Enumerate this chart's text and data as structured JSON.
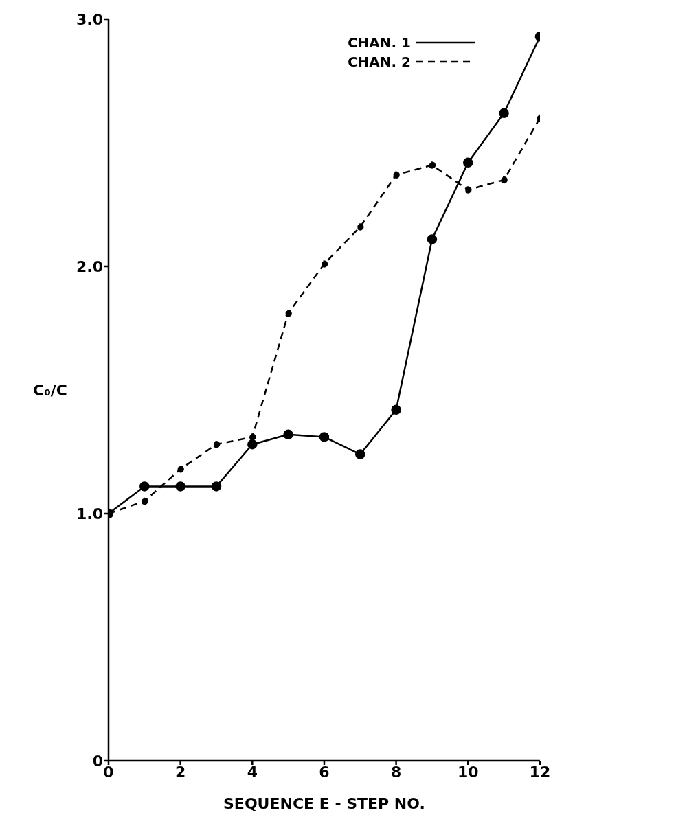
{
  "chart_data": {
    "type": "line",
    "xlabel": "SEQUENCE E - STEP NO.",
    "ylabel": "C₀/C",
    "x": [
      0,
      1,
      2,
      3,
      4,
      5,
      6,
      7,
      8,
      9,
      10,
      11,
      12
    ],
    "series": [
      {
        "name": "CHAN. 1",
        "color": "#000000",
        "line_style": "solid",
        "values": [
          1.0,
          1.11,
          1.11,
          1.11,
          1.28,
          1.32,
          1.31,
          1.24,
          1.42,
          2.11,
          2.42,
          2.62,
          2.93
        ]
      },
      {
        "name": "CHAN. 2",
        "color": "#000000",
        "line_style": "dashed",
        "values": [
          1.0,
          1.05,
          1.18,
          1.28,
          1.31,
          1.81,
          2.01,
          2.16,
          2.37,
          2.41,
          2.31,
          2.35,
          2.6
        ]
      }
    ],
    "xlim": [
      0,
      12
    ],
    "xticks": [
      0,
      2,
      4,
      6,
      8,
      10,
      12
    ],
    "ylim": [
      0,
      3
    ],
    "yticks": [
      0,
      {
        "value": 1,
        "label": "1.0"
      },
      {
        "value": 2,
        "label": "2.0"
      },
      {
        "value": 3,
        "label": "3.0"
      }
    ],
    "grid": false,
    "legend": "top right",
    "marker": "circle"
  }
}
